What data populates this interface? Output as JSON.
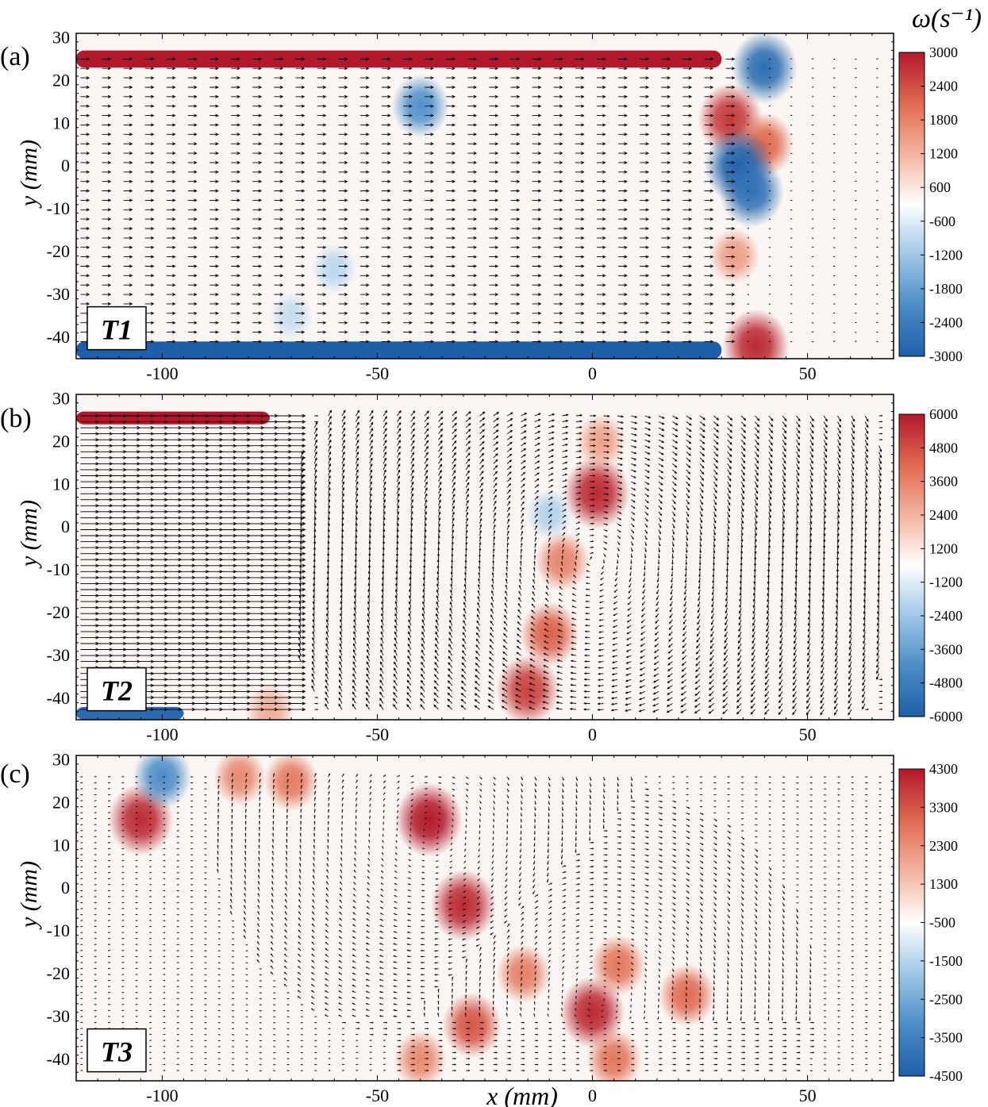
{
  "figure": {
    "colorbar_title": "ω(s⁻¹)",
    "xlabel": "x (mm)",
    "ylabel": "y (mm)",
    "colors": {
      "stops": [
        "#1e5fa9",
        "#4a8cc6",
        "#9ec7e6",
        "#ffffff",
        "#f3b49e",
        "#e06a4f",
        "#b2182b"
      ]
    }
  },
  "chart_data": [
    {
      "type": "heatmap",
      "panel_label": "(a)",
      "case_label": "T1",
      "xlim": [
        -120,
        70
      ],
      "ylim": [
        -45,
        31
      ],
      "xticks": [
        -100,
        -50,
        0,
        50
      ],
      "xtick_labels": [
        "-100",
        "-50",
        "0",
        "50"
      ],
      "yticks": [
        30,
        20,
        10,
        0,
        -10,
        -20,
        -30,
        -40
      ],
      "ytick_labels": [
        "30",
        "20",
        "10",
        "0",
        "-10",
        "-20",
        "-30",
        "-40"
      ],
      "colorbar": {
        "min": -3000,
        "max": 3000,
        "ticks": [
          3000,
          2400,
          1800,
          1200,
          600,
          -600,
          -1200,
          -1800,
          -2400,
          -3000
        ],
        "tick_labels": [
          "3000",
          "2400",
          "1800",
          "1200",
          "600",
          "-600",
          "-1200",
          "-1800",
          "-2400",
          "-3000"
        ]
      },
      "vortices": [
        {
          "x": 32,
          "y": 11,
          "w": 2600
        },
        {
          "x": 40,
          "y": 5,
          "w": 2000
        },
        {
          "x": 34,
          "y": 0,
          "w": -3000
        },
        {
          "x": 37,
          "y": -6,
          "w": -2600
        },
        {
          "x": 40,
          "y": 23,
          "w": -2700
        },
        {
          "x": 38,
          "y": -42,
          "w": 2800
        },
        {
          "x": 33,
          "y": -21,
          "w": 1300
        },
        {
          "x": -40,
          "y": 14,
          "w": -1900
        },
        {
          "x": -60,
          "y": -24,
          "w": -700
        },
        {
          "x": -70,
          "y": -35,
          "w": -600
        }
      ],
      "walls": [
        {
          "x0": -120,
          "x1": 30,
          "y0": 23,
          "y1": 27,
          "w": 3000
        },
        {
          "x0": -120,
          "x1": 30,
          "y0": -45,
          "y1": -41,
          "w": -3000
        }
      ],
      "vector_field": {
        "mode": "jet",
        "rows_start": 25,
        "rows_step": -2.2,
        "rows_end": -42,
        "x_start": -119,
        "x_step": 5,
        "x_end": 68,
        "scale": 4.5,
        "stop": 35
      }
    },
    {
      "type": "heatmap",
      "panel_label": "(b)",
      "case_label": "T2",
      "xlim": [
        -120,
        70
      ],
      "ylim": [
        -45,
        31
      ],
      "xticks": [
        -100,
        -50,
        0,
        50
      ],
      "xtick_labels": [
        "-100",
        "-50",
        "0",
        "50"
      ],
      "yticks": [
        30,
        20,
        10,
        0,
        -10,
        -20,
        -30,
        -40
      ],
      "ytick_labels": [
        "30",
        "20",
        "10",
        "0",
        "-10",
        "-20",
        "-30",
        "-40"
      ],
      "colorbar": {
        "min": -6000,
        "max": 6000,
        "ticks": [
          6000,
          4800,
          3600,
          2400,
          1200,
          -1200,
          -2400,
          -3600,
          -4800,
          -6000
        ],
        "tick_labels": [
          "6000",
          "4800",
          "3600",
          "2400",
          "1200",
          "-1200",
          "-2400",
          "-3600",
          "-4800",
          "-6000"
        ]
      },
      "vortices": [
        {
          "x": 1,
          "y": 8,
          "w": 5600
        },
        {
          "x": 2,
          "y": 20,
          "w": 2500
        },
        {
          "x": -7,
          "y": -8,
          "w": 3300
        },
        {
          "x": -10,
          "y": -25,
          "w": 4200
        },
        {
          "x": -15,
          "y": -38,
          "w": 5000
        },
        {
          "x": -10,
          "y": 3,
          "w": -1600
        },
        {
          "x": -75,
          "y": -43,
          "w": 2200
        }
      ],
      "walls": [
        {
          "x0": -120,
          "x1": -75,
          "y0": 24,
          "y1": 27,
          "w": 6000
        },
        {
          "x0": -120,
          "x1": -95,
          "y0": -45,
          "y1": -42,
          "w": -5500
        }
      ],
      "vector_field": {
        "mode": "jet_front",
        "front_x": -68,
        "rows_start": 26,
        "rows_step": -1.4,
        "rows_end": -43,
        "x_start": -119,
        "x_step": 3.2,
        "x_end": 68,
        "scale": 6.5,
        "rings": [
          {
            "x": 0,
            "y": -8,
            "r": 40
          }
        ]
      }
    },
    {
      "type": "heatmap",
      "panel_label": "(c)",
      "case_label": "T3",
      "xlim": [
        -120,
        70
      ],
      "ylim": [
        -45,
        31
      ],
      "xticks": [
        -100,
        -50,
        0,
        50
      ],
      "xtick_labels": [
        "-100",
        "-50",
        "0",
        "50"
      ],
      "yticks": [
        30,
        20,
        10,
        0,
        -10,
        -20,
        -30,
        -40
      ],
      "ytick_labels": [
        "30",
        "20",
        "10",
        "0",
        "-10",
        "-20",
        "-30",
        "-40"
      ],
      "colorbar": {
        "min": -4500,
        "max": 4300,
        "ticks": [
          4300,
          3300,
          2300,
          1300,
          -500,
          -1500,
          -2500,
          -3500,
          -4500
        ],
        "tick_labels": [
          "4300",
          "3300",
          "2300",
          "1300",
          "-500",
          "-1500",
          "-2500",
          "-3500",
          "-4500"
        ]
      },
      "vortices": [
        {
          "x": -38,
          "y": 16,
          "w": 4300
        },
        {
          "x": -105,
          "y": 16,
          "w": 4000
        },
        {
          "x": -30,
          "y": -4,
          "w": 4000
        },
        {
          "x": 0,
          "y": -29,
          "w": 4000
        },
        {
          "x": -28,
          "y": -32,
          "w": 3200
        },
        {
          "x": 22,
          "y": -25,
          "w": 2800
        },
        {
          "x": -16,
          "y": -20,
          "w": 2400
        },
        {
          "x": 6,
          "y": -18,
          "w": 2600
        },
        {
          "x": -70,
          "y": 25,
          "w": 2500
        },
        {
          "x": -82,
          "y": 26,
          "w": 2200
        },
        {
          "x": -100,
          "y": 26,
          "w": -3000
        },
        {
          "x": -40,
          "y": -40,
          "w": 2200
        },
        {
          "x": 5,
          "y": -40,
          "w": 2600
        }
      ],
      "walls": [],
      "vector_field": {
        "mode": "vortical",
        "rows_start": 26,
        "rows_step": -1.4,
        "rows_end": -43,
        "x_start": -119,
        "x_step": 3.2,
        "x_end": 68,
        "scale": 3.6,
        "rings": [
          {
            "x": -38,
            "y": 14,
            "r": 28
          },
          {
            "x": 2,
            "y": -26,
            "r": 28
          }
        ]
      }
    }
  ]
}
